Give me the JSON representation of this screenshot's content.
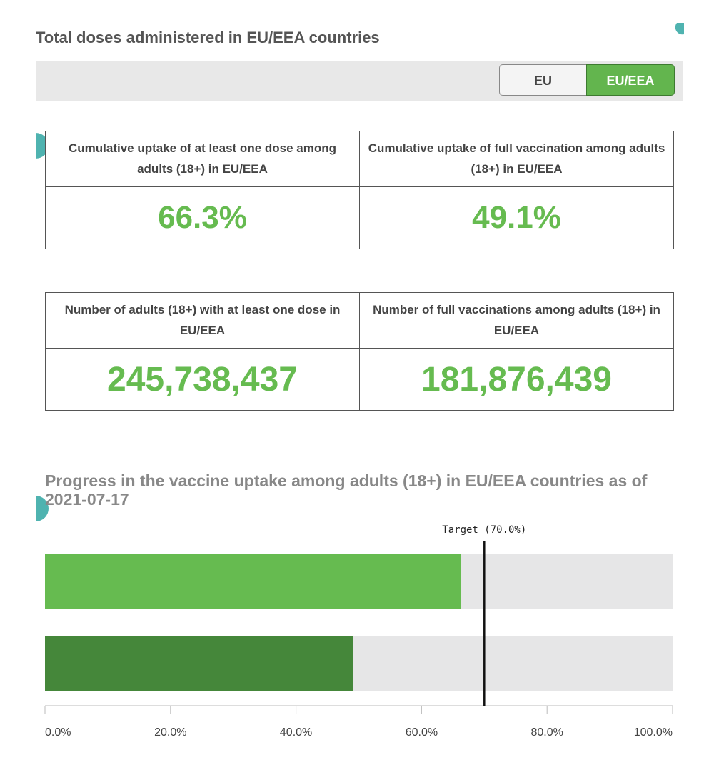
{
  "header": {
    "title": "Total doses administered in EU/EEA countries"
  },
  "toggle": {
    "options": [
      "EU",
      "EU/EEA"
    ],
    "selected": 1
  },
  "tiles": [
    [
      {
        "label": "Cumulative uptake of at least one dose among adults (18+) in EU/EEA",
        "value": "66.3%"
      },
      {
        "label": "Cumulative uptake of full vaccination among adults (18+) in EU/EEA",
        "value": "49.1%"
      }
    ],
    [
      {
        "label": "Number of adults (18+) with at least one dose in EU/EEA",
        "value": "245,738,437"
      },
      {
        "label": "Number of full vaccinations among adults (18+) in EU/EEA",
        "value": "181,876,439"
      }
    ]
  ],
  "chart_data": {
    "type": "hbar",
    "title": "Progress in the vaccine uptake among adults (18+) in EU/EEA countries as of 2021-07-17",
    "categories": [
      null,
      null
    ],
    "values": [
      66.3,
      49.1
    ],
    "colors": [
      "#66bb50",
      "#45873a"
    ],
    "track_color": "#e6e6e7",
    "xlim": [
      0,
      100
    ],
    "xticks": [
      {
        "value": 0,
        "label": "0.0%"
      },
      {
        "value": 20,
        "label": "20.0%"
      },
      {
        "value": 40,
        "label": "40.0%"
      },
      {
        "value": 60,
        "label": "60.0%"
      },
      {
        "value": 80,
        "label": "80.0%"
      },
      {
        "value": 100,
        "label": "100.0%"
      }
    ],
    "target": {
      "value": 70,
      "label": "Target (70.0%)"
    }
  }
}
